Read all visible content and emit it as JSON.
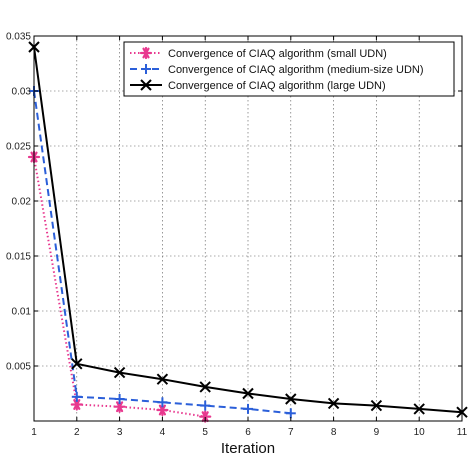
{
  "chart_data": {
    "type": "line",
    "title": "",
    "xlabel": "Iteration",
    "ylabel": "",
    "xlim": [
      1,
      11
    ],
    "ylim": [
      0,
      0.035
    ],
    "x_ticks": [
      1,
      2,
      3,
      4,
      5,
      6,
      7,
      8,
      9,
      10,
      11
    ],
    "x_tick_labels": [
      "1",
      "2",
      "3",
      "4",
      "5",
      "6",
      "7",
      "8",
      "9",
      "10",
      "11"
    ],
    "y_ticks": [
      0.005,
      0.01,
      0.015,
      0.02,
      0.025,
      0.03,
      0.035
    ],
    "y_tick_labels": [
      "0.005",
      "0.01",
      "0.015",
      "0.02",
      "0.025",
      "0.03",
      "0.035"
    ],
    "grid": true,
    "legend_position": "top-right",
    "series": [
      {
        "name": "Convergence of CIAQ algorithm (small UDN)",
        "color": "#e8398f",
        "line_style": "dotted",
        "marker": "asterisk",
        "x": [
          1,
          2,
          3,
          4,
          5
        ],
        "values": [
          0.024,
          0.0015,
          0.0013,
          0.001,
          0.0004
        ]
      },
      {
        "name": "Convergence of CIAQ algorithm  (medium-size UDN)",
        "color": "#2b5fd9",
        "line_style": "dashed",
        "marker": "plus",
        "x": [
          1,
          2,
          3,
          4,
          5,
          6,
          7
        ],
        "values": [
          0.03,
          0.0022,
          0.002,
          0.0017,
          0.0014,
          0.0011,
          0.0007
        ]
      },
      {
        "name": "Convergence of CIAQ algorithm  (large UDN)",
        "color": "#000000",
        "line_style": "solid",
        "marker": "x",
        "x": [
          1,
          2,
          3,
          4,
          5,
          6,
          7,
          8,
          9,
          10,
          11
        ],
        "values": [
          0.034,
          0.0052,
          0.0044,
          0.0038,
          0.0031,
          0.0025,
          0.002,
          0.0016,
          0.0014,
          0.0011,
          0.0008
        ]
      }
    ]
  }
}
